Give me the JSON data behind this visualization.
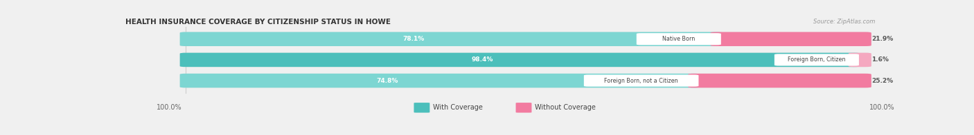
{
  "title": "HEALTH INSURANCE COVERAGE BY CITIZENSHIP STATUS IN HOWE",
  "source": "Source: ZipAtlas.com",
  "categories": [
    "Native Born",
    "Foreign Born, Citizen",
    "Foreign Born, not a Citizen"
  ],
  "with_coverage": [
    78.1,
    98.4,
    74.8
  ],
  "without_coverage": [
    21.9,
    1.6,
    25.2
  ],
  "color_with": "#4CBFBB",
  "color_with_light": "#7DD6D2",
  "color_without": "#F27BA0",
  "color_without_light": "#F5A8C0",
  "label_left_100": "100.0%",
  "label_right_100": "100.0%",
  "bg_color": "#f0f0f0",
  "bar_bg": "#e2e2e2",
  "figsize": [
    14.06,
    1.96
  ],
  "dpi": 100
}
